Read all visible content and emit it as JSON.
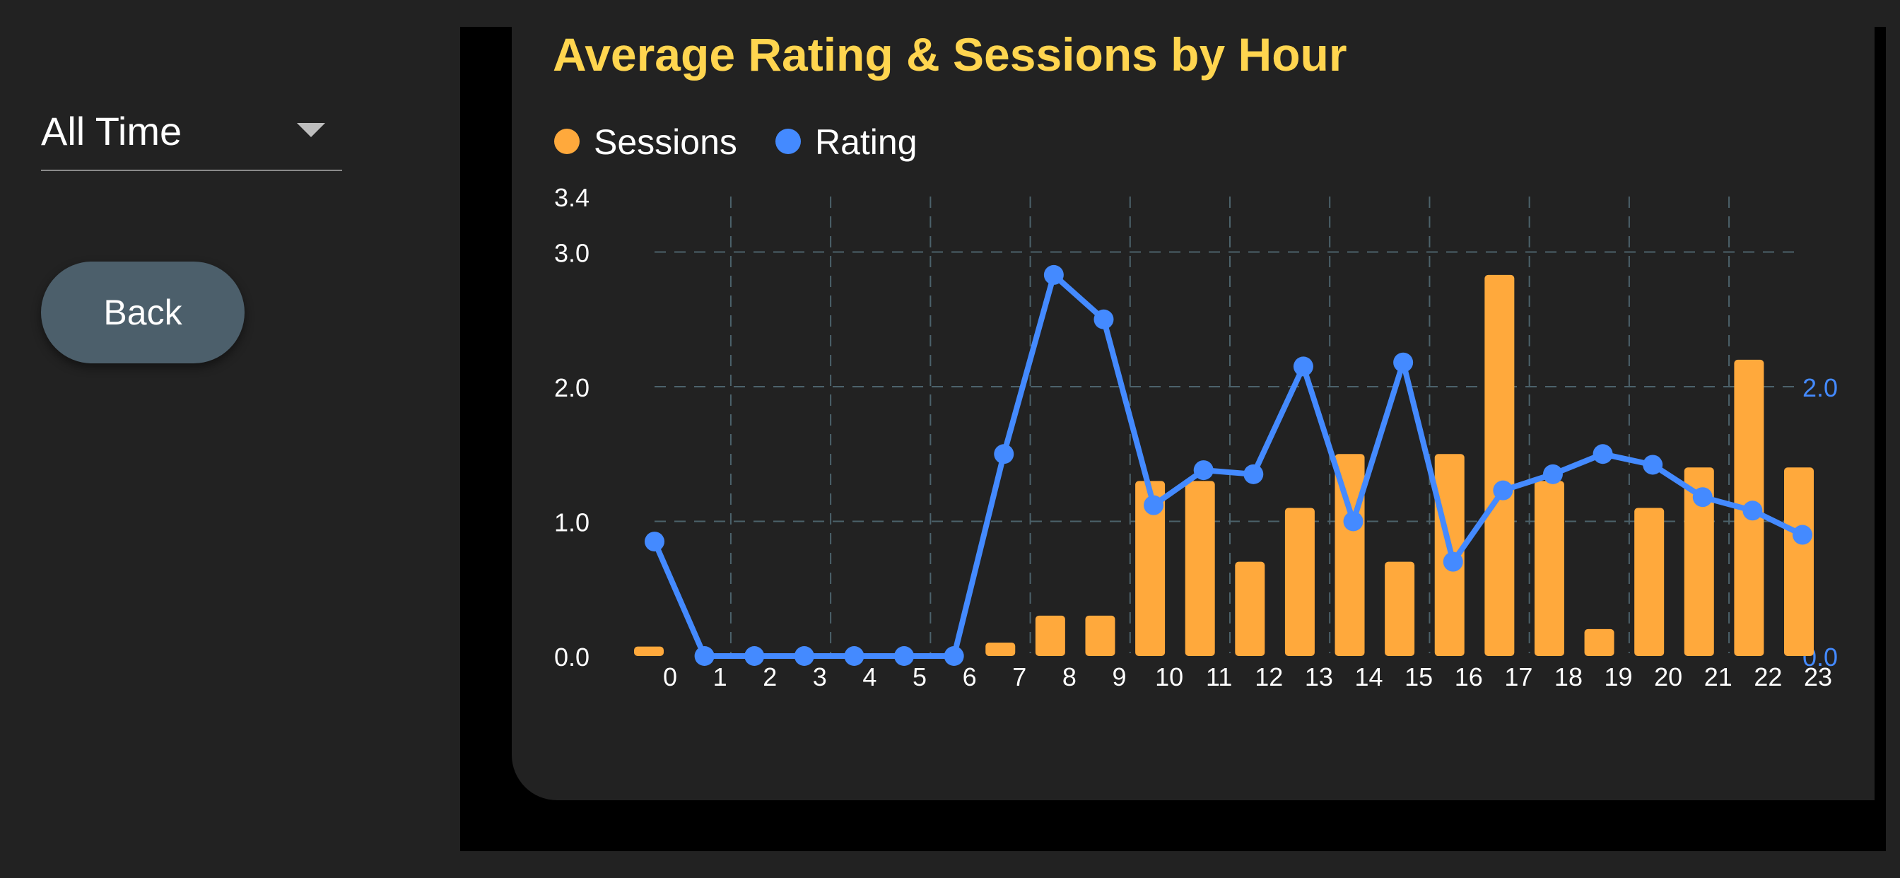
{
  "sidebar": {
    "period_selector": {
      "value": "All Time"
    },
    "back_label": "Back"
  },
  "chart_data": {
    "type": "bar",
    "title": "Average Rating & Sessions by Hour",
    "categories": [
      "0",
      "1",
      "2",
      "3",
      "4",
      "5",
      "6",
      "7",
      "8",
      "9",
      "10",
      "11",
      "12",
      "13",
      "14",
      "15",
      "16",
      "17",
      "18",
      "19",
      "20",
      "21",
      "22",
      "23"
    ],
    "series": [
      {
        "name": "Sessions",
        "type": "bar",
        "axis": "left",
        "color": "#FFA93C",
        "values": [
          0.07,
          0,
          0,
          0,
          0,
          0,
          0,
          0.1,
          0.3,
          0.3,
          1.3,
          1.3,
          0.7,
          1.1,
          1.5,
          0.7,
          1.5,
          2.83,
          1.3,
          0.2,
          1.1,
          1.4,
          2.2,
          1.4
        ]
      },
      {
        "name": "Rating",
        "type": "line",
        "axis": "right",
        "color": "#448AFF",
        "values": [
          0.85,
          0,
          0,
          0,
          0,
          0,
          0,
          1.5,
          2.83,
          2.5,
          1.12,
          1.38,
          1.35,
          2.15,
          1.0,
          2.18,
          0.7,
          1.23,
          1.35,
          1.5,
          1.42,
          1.18,
          1.08,
          0.9
        ]
      }
    ],
    "y_left": {
      "ticks": [
        "0.0",
        "1.0",
        "2.0",
        "3.0",
        "3.4"
      ],
      "range": [
        0,
        3.4
      ]
    },
    "y_right": {
      "ticks": [
        "0.0",
        "2.0"
      ],
      "color": "#448AFF"
    },
    "grid": true,
    "legend": "top-left",
    "title_color": "#FFD54F"
  }
}
